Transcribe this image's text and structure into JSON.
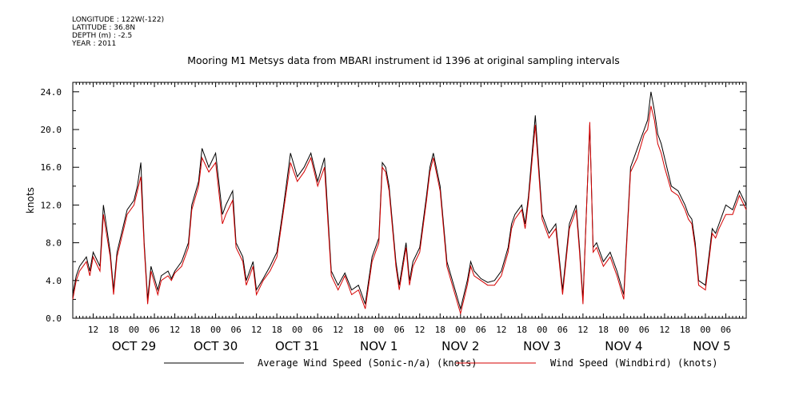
{
  "meta": {
    "lines": [
      "LONGITUDE : 122W(-122)",
      "LATITUDE : 36.8N",
      "DEPTH (m) : -2.5",
      "YEAR : 2011"
    ]
  },
  "chart_data": {
    "type": "line",
    "title": "Mooring M1 Metsys data from MBARI instrument id 1396 at original sampling intervals",
    "ylabel": "knots",
    "ylim": [
      0,
      25
    ],
    "yticks": [
      0.0,
      4.0,
      8.0,
      12.0,
      16.0,
      20.0,
      24.0
    ],
    "ytick_labels": [
      "0.0",
      "4.0",
      "8.0",
      "12.0",
      "16.0",
      "20.0",
      "24.0"
    ],
    "x_unit": "hours since Oct 28 00:00 (2011)",
    "xlim": [
      30,
      228
    ],
    "hour_tick_labels": [
      "12",
      "18",
      "00",
      "06",
      "12",
      "18",
      "00",
      "06",
      "12",
      "18",
      "00",
      "06",
      "12",
      "18",
      "00",
      "06",
      "12",
      "18",
      "00",
      "06",
      "12",
      "18",
      "00",
      "06",
      "12",
      "18",
      "00",
      "06",
      "12",
      "18",
      "00",
      "06"
    ],
    "day_labels": [
      "OCT 29",
      "OCT 30",
      "OCT 31",
      "NOV 1",
      "NOV 2",
      "NOV 3",
      "NOV 4",
      "NOV 5"
    ],
    "grid": false,
    "legend_position": "bottom",
    "series": [
      {
        "name": "Average Wind Speed (Sonic-n/a) (knots)",
        "color": "#000000",
        "x": [
          30,
          31,
          32,
          34,
          35,
          36,
          38,
          39,
          41,
          42,
          43,
          45,
          46,
          48,
          49,
          50,
          51,
          52,
          53,
          55,
          56,
          58,
          59,
          60,
          62,
          64,
          65,
          67,
          68,
          70,
          72,
          74,
          75,
          77,
          78,
          80,
          81,
          83,
          84,
          86,
          88,
          90,
          92,
          94,
          96,
          98,
          100,
          102,
          104,
          106,
          108,
          110,
          112,
          114,
          116,
          118,
          120,
          121,
          122,
          123,
          125,
          126,
          128,
          129,
          130,
          132,
          134,
          135,
          136,
          138,
          140,
          142,
          144,
          146,
          147,
          148,
          150,
          152,
          154,
          156,
          158,
          159,
          160,
          162,
          163,
          164,
          166,
          168,
          170,
          172,
          174,
          176,
          178,
          179,
          180,
          182,
          183,
          184,
          186,
          188,
          190,
          192,
          194,
          196,
          198,
          199,
          200,
          201,
          202,
          203,
          204,
          206,
          208,
          210,
          211,
          212,
          213,
          214,
          216,
          218,
          219,
          220,
          222,
          224,
          226,
          228
        ],
        "y": [
          2.5,
          4.5,
          5.5,
          6.5,
          5.0,
          7.0,
          5.5,
          12.0,
          7.0,
          3.0,
          7.0,
          10.0,
          11.5,
          12.5,
          14.0,
          16.5,
          8.0,
          2.0,
          5.5,
          3.0,
          4.5,
          5.0,
          4.2,
          5.0,
          6.0,
          8.0,
          12.0,
          14.5,
          18.0,
          16.0,
          17.5,
          11.0,
          12.0,
          13.5,
          8.0,
          6.5,
          4.0,
          6.0,
          3.0,
          4.2,
          5.5,
          7.0,
          12.0,
          17.5,
          15.0,
          16.0,
          17.5,
          14.5,
          17.0,
          5.0,
          3.5,
          4.8,
          3.0,
          3.5,
          1.5,
          6.5,
          8.5,
          16.5,
          16.0,
          14.0,
          6.0,
          3.5,
          8.0,
          4.0,
          6.0,
          7.5,
          13.0,
          16.0,
          17.5,
          14.0,
          6.0,
          3.5,
          1.0,
          4.0,
          6.0,
          5.0,
          4.2,
          3.8,
          4.0,
          5.0,
          7.5,
          10.0,
          11.0,
          12.0,
          10.0,
          13.0,
          21.5,
          11.0,
          9.0,
          10.0,
          3.0,
          10.0,
          12.0,
          7.5,
          2.0,
          20.5,
          7.5,
          8.0,
          6.0,
          7.0,
          5.0,
          2.5,
          16.0,
          18.0,
          20.0,
          21.0,
          24.0,
          22.0,
          19.5,
          18.5,
          17.0,
          14.0,
          13.5,
          12.0,
          11.0,
          10.5,
          8.0,
          4.0,
          3.5,
          9.5,
          9.0,
          10.0,
          12.0,
          11.5,
          13.5,
          12.0
        ],
        "note": "approximate digitization of the dense time series"
      },
      {
        "name": "Wind Speed (Windbird) (knots)",
        "color": "#d40000",
        "x": [
          30,
          31,
          32,
          34,
          35,
          36,
          38,
          39,
          41,
          42,
          43,
          45,
          46,
          48,
          49,
          50,
          51,
          52,
          53,
          55,
          56,
          58,
          59,
          60,
          62,
          64,
          65,
          67,
          68,
          70,
          72,
          74,
          75,
          77,
          78,
          80,
          81,
          83,
          84,
          86,
          88,
          90,
          92,
          94,
          96,
          98,
          100,
          102,
          104,
          106,
          108,
          110,
          112,
          114,
          116,
          118,
          120,
          121,
          122,
          123,
          125,
          126,
          128,
          129,
          130,
          132,
          134,
          135,
          136,
          138,
          140,
          142,
          144,
          146,
          147,
          148,
          150,
          152,
          154,
          156,
          158,
          159,
          160,
          162,
          163,
          164,
          166,
          168,
          170,
          172,
          174,
          176,
          178,
          179,
          180,
          182,
          183,
          184,
          186,
          188,
          190,
          192,
          194,
          196,
          198,
          199,
          200,
          201,
          202,
          203,
          204,
          206,
          208,
          210,
          211,
          212,
          213,
          214,
          216,
          218,
          219,
          220,
          222,
          224,
          226,
          228
        ],
        "y": [
          2.0,
          4.0,
          5.0,
          6.0,
          4.5,
          6.5,
          5.0,
          11.0,
          6.5,
          2.5,
          6.5,
          9.5,
          11.0,
          12.0,
          13.5,
          15.0,
          7.5,
          1.5,
          5.0,
          2.5,
          4.0,
          4.5,
          4.0,
          4.8,
          5.5,
          7.5,
          11.5,
          14.0,
          17.0,
          15.5,
          16.5,
          10.0,
          11.0,
          12.5,
          7.5,
          6.0,
          3.5,
          5.5,
          2.5,
          4.0,
          5.0,
          6.5,
          11.5,
          16.5,
          14.5,
          15.5,
          17.0,
          14.0,
          16.0,
          4.5,
          3.0,
          4.5,
          2.5,
          3.0,
          1.0,
          6.0,
          8.0,
          16.0,
          15.5,
          13.5,
          5.5,
          3.0,
          7.5,
          3.5,
          5.5,
          7.0,
          12.5,
          15.5,
          17.0,
          13.5,
          5.5,
          3.0,
          0.5,
          3.5,
          5.5,
          4.5,
          4.0,
          3.5,
          3.5,
          4.5,
          7.0,
          9.5,
          10.5,
          11.5,
          9.5,
          12.5,
          20.5,
          10.5,
          8.5,
          9.5,
          2.5,
          9.5,
          11.5,
          7.0,
          1.5,
          20.8,
          7.0,
          7.5,
          5.5,
          6.5,
          4.5,
          2.0,
          15.5,
          17.0,
          19.5,
          20.0,
          22.5,
          21.0,
          18.5,
          17.5,
          16.0,
          13.5,
          13.0,
          11.5,
          10.5,
          10.0,
          7.5,
          3.5,
          3.0,
          9.0,
          8.5,
          9.5,
          11.0,
          11.0,
          13.0,
          11.5
        ],
        "note": "approximate digitization of the dense time series"
      }
    ]
  }
}
